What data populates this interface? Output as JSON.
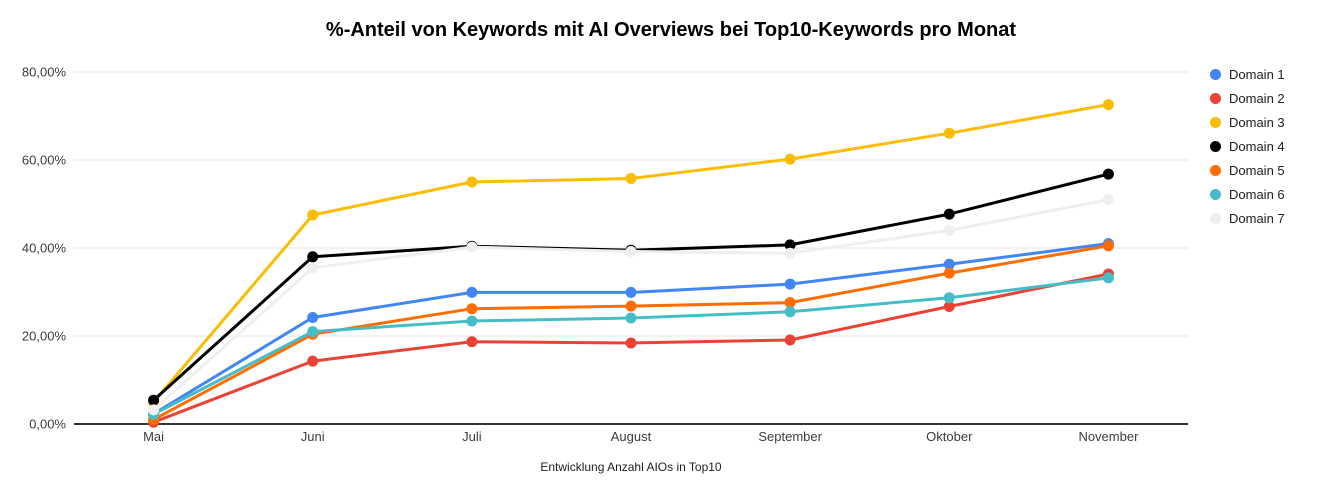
{
  "chart_data": {
    "type": "line",
    "title": "%-Anteil von Keywords mit AI Overviews bei Top10-Keywords pro Monat",
    "xlabel": "Entwicklung Anzahl AIOs in Top10",
    "ylabel": "",
    "categories": [
      "Mai",
      "Juni",
      "Juli",
      "August",
      "September",
      "Oktober",
      "November"
    ],
    "series": [
      {
        "name": "Domain 1",
        "color": "#4285F4",
        "values": [
          2.3,
          24.2,
          29.9,
          29.9,
          31.8,
          36.3,
          41.0
        ]
      },
      {
        "name": "Domain 2",
        "color": "#EA4335",
        "values": [
          0.4,
          14.3,
          18.7,
          18.4,
          19.1,
          26.7,
          34.1
        ]
      },
      {
        "name": "Domain 3",
        "color": "#FBBC04",
        "values": [
          5.0,
          47.5,
          55.0,
          55.8,
          60.2,
          66.1,
          72.6
        ]
      },
      {
        "name": "Domain 4",
        "color": "#000000",
        "values": [
          5.4,
          38.0,
          40.4,
          39.5,
          40.7,
          47.7,
          56.8
        ]
      },
      {
        "name": "Domain 5",
        "color": "#FF6D01",
        "values": [
          1.0,
          20.4,
          26.2,
          26.8,
          27.6,
          34.3,
          40.5
        ]
      },
      {
        "name": "Domain 6",
        "color": "#46BDC6",
        "values": [
          2.2,
          21.0,
          23.4,
          24.1,
          25.5,
          28.7,
          33.2
        ]
      },
      {
        "name": "Domain 7",
        "color": "#EFEFEF",
        "values": [
          3.2,
          35.5,
          40.2,
          39.2,
          38.8,
          44.0,
          51.0
        ]
      }
    ],
    "ylim": [
      0,
      80
    ],
    "y_ticks": [
      "0,00%",
      "20,00%",
      "40,00%",
      "60,00%",
      "80,00%"
    ],
    "grid": true,
    "legend_position": "right",
    "grid_color": "#e6e6e6",
    "axis_color": "#333333"
  }
}
